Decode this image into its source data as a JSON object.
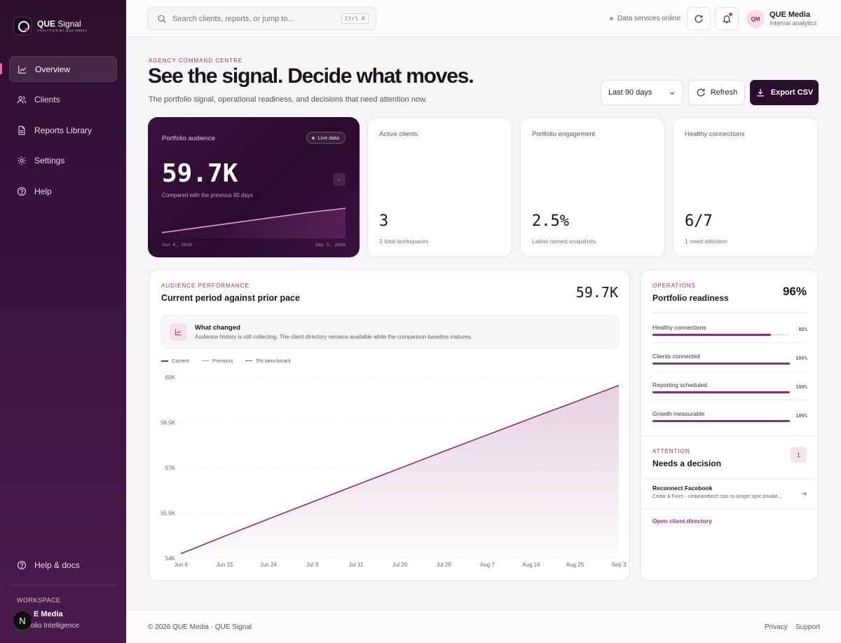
{
  "brand": {
    "title_bold": "QUE",
    "title_rest": " Signal",
    "subtitle": "ANALYTICS BY QUE MEDIA"
  },
  "sidebar": {
    "items": [
      {
        "label": "Overview",
        "icon": "chart-line-icon"
      },
      {
        "label": "Clients",
        "icon": "users-icon"
      },
      {
        "label": "Reports Library",
        "icon": "document-icon"
      },
      {
        "label": "Settings",
        "icon": "gear-icon"
      },
      {
        "label": "Help",
        "icon": "help-icon"
      }
    ],
    "help_docs": "Help & docs",
    "workspace_label": "WORKSPACE",
    "workspace_name": "E Media",
    "workspace_sub": "olio Intelligence",
    "badge": "N"
  },
  "topbar": {
    "search_placeholder": "Search clients, reports, or jump to...",
    "shortcut": "Ctrl K",
    "status": "Data services online",
    "avatar_initials": "QM",
    "user_name": "QUE Media",
    "user_sub": "Internal analytics"
  },
  "header": {
    "eyebrow": "AGENCY COMMAND CENTRE",
    "title": "See the signal. Decide what moves.",
    "subtitle": "The portfolio signal, operational readiness, and decisions that need attention now.",
    "range": "Last 90 days",
    "refresh": "Refresh",
    "export": "Export CSV"
  },
  "hero": {
    "label": "Portfolio audience",
    "badge": "Live data",
    "value": "59.7K",
    "chip": "-",
    "compare": "Compared with the previous 90 days",
    "date_start": "Jun 6, 2026",
    "date_end": "Sep 3, 2026",
    "spark": [
      0.08,
      0.26,
      0.44,
      0.62,
      0.8,
      0.95
    ]
  },
  "kpis": [
    {
      "label": "Active clients",
      "value": "3",
      "foot": "3 total workspaces"
    },
    {
      "label": "Portfolio engagement",
      "value": "2.5%",
      "foot": "Latest owned snapshots"
    },
    {
      "label": "Healthy connections",
      "value": "6/7",
      "foot": "1 need attention"
    }
  ],
  "performance": {
    "eyebrow": "AUDIENCE PERFORMANCE",
    "title": "Current period against prior pace",
    "value": "59.7K",
    "callout_title": "What changed",
    "callout_text": "Audience history is still collecting. The client directory remains available while the comparison baseline matures.",
    "legend": [
      "Current",
      "Previous",
      "5% benchmark"
    ]
  },
  "chart_data": {
    "type": "area",
    "x": [
      "Jun 6",
      "Jun 15",
      "Jun 24",
      "Jul 3",
      "Jul 11",
      "Jul 20",
      "Jul 29",
      "Aug 7",
      "Aug 16",
      "Aug 25",
      "Sep 3"
    ],
    "series": [
      {
        "name": "Current",
        "values": [
          54150,
          54730,
          55300,
          55860,
          56420,
          56980,
          57540,
          58090,
          58640,
          59180,
          59730
        ]
      }
    ],
    "y_ticks": [
      "54K",
      "55.5K",
      "57K",
      "58.5K",
      "60K"
    ],
    "ylim": [
      54000,
      60000
    ],
    "grid": true,
    "legend": "top-left",
    "color": "#8b2f6f"
  },
  "operations": {
    "eyebrow": "OPERATIONS",
    "title": "Portfolio readiness",
    "value": "96%",
    "rows": [
      {
        "label": "Healthy connections",
        "pct": "86%",
        "fraction": 0.86
      },
      {
        "label": "Clients connected",
        "pct": "100%",
        "fraction": 1.0
      },
      {
        "label": "Reporting scheduled",
        "pct": "100%",
        "fraction": 1.0
      },
      {
        "label": "Growth measurable",
        "pct": "100%",
        "fraction": 1.0
      }
    ],
    "attention_eyebrow": "ATTENTION",
    "attention_title": "Needs a decision",
    "attention_count": "1",
    "decision_title": "Reconnect Facebook",
    "decision_desc": "Cedar & Finch · cedarandfinch can no longer sync private...",
    "open_directory": "Open client directory"
  },
  "footer": {
    "copyright": "© 2026 QUE Media · QUE Signal",
    "privacy": "Privacy",
    "support": "Support"
  }
}
